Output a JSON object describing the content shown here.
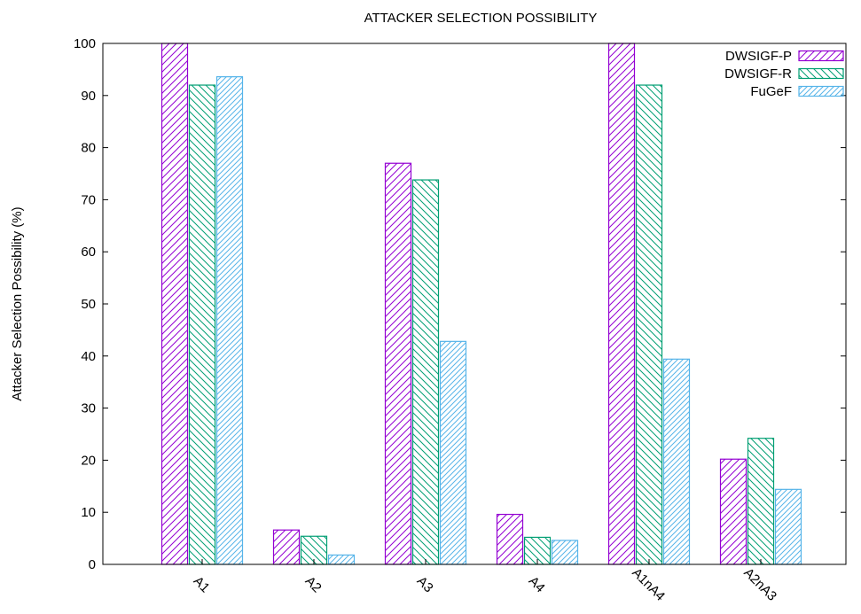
{
  "chart_data": {
    "type": "bar",
    "title": "ATTACKER SELECTION POSSIBILITY",
    "xlabel": "",
    "ylabel": "Attacker Selection Possibility (%)",
    "ylim": [
      0,
      100
    ],
    "yticks": [
      0,
      10,
      20,
      30,
      40,
      50,
      60,
      70,
      80,
      90,
      100
    ],
    "categories": [
      "A1",
      "A2",
      "A3",
      "A4",
      "A1nA4",
      "A2nA3"
    ],
    "legend_position": "top-right",
    "grid": false,
    "series": [
      {
        "name": "DWSIGF-P",
        "color": "#9400d3",
        "pattern": "diagonal-up",
        "values": [
          100,
          6.6,
          77,
          9.6,
          100,
          20.2
        ]
      },
      {
        "name": "DWSIGF-R",
        "color": "#009e73",
        "pattern": "diagonal-down",
        "values": [
          92,
          5.4,
          73.8,
          5.2,
          92,
          24.2
        ]
      },
      {
        "name": "FuGeF",
        "color": "#56b4e9",
        "pattern": "diagonal-up-dense",
        "values": [
          93.6,
          1.8,
          42.8,
          4.6,
          39.4,
          14.4
        ]
      }
    ]
  }
}
